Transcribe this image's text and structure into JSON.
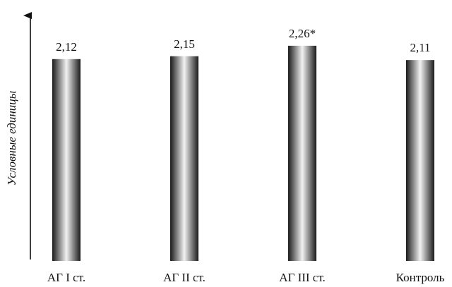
{
  "chart_data": {
    "type": "bar",
    "categories": [
      "АГ I ст.",
      "АГ II ст.",
      "АГ III ст.",
      "Контроль"
    ],
    "values": [
      2.12,
      2.15,
      2.26,
      2.11
    ],
    "value_labels": [
      "2,12",
      "2,15",
      "2,26*",
      "2,11"
    ],
    "ylabel": "Условные единицы",
    "ylim": [
      0,
      2.4
    ],
    "grid": false,
    "legend": "none",
    "bar_gradient": [
      "#1a1a1a",
      "#f2f2f2",
      "#1a1a1a"
    ]
  }
}
